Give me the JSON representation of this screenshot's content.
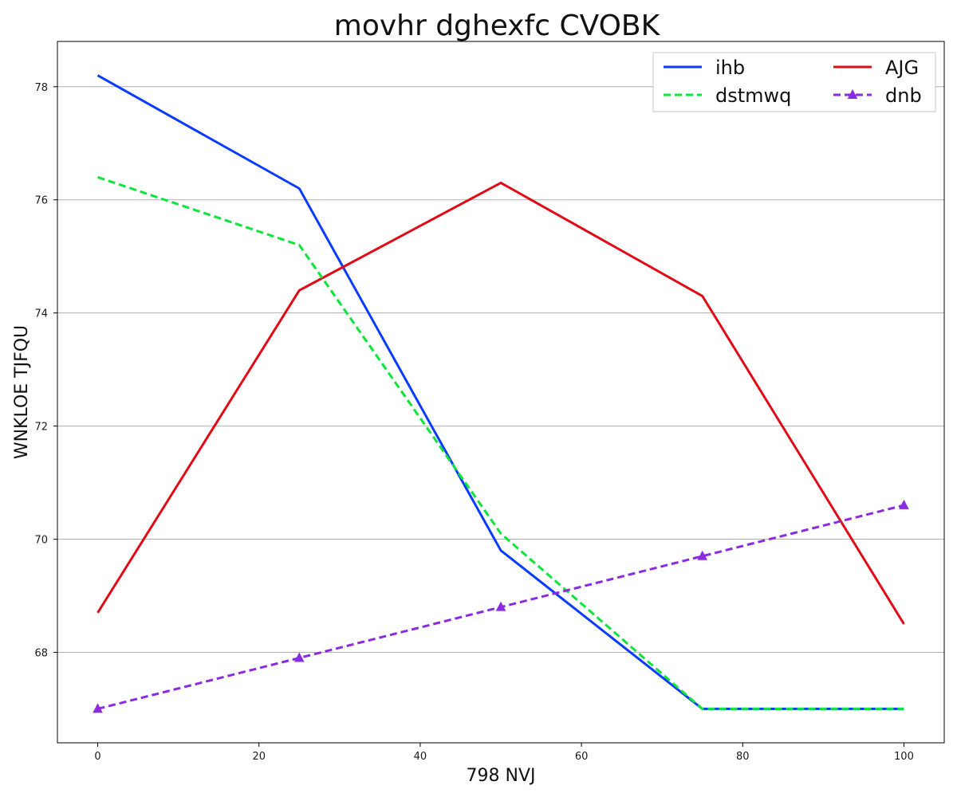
{
  "chart_data": {
    "type": "line",
    "title": "movhr dghexfc CVOBK",
    "xlabel": "798 NVJ",
    "ylabel": "WNKLOE TJFQU",
    "x": [
      0,
      25,
      50,
      75,
      100
    ],
    "xlim": [
      -5,
      105
    ],
    "ylim": [
      66.4,
      78.8
    ],
    "xticks": [
      0,
      20,
      40,
      60,
      80,
      100
    ],
    "yticks": [
      68,
      70,
      72,
      74,
      76,
      78
    ],
    "grid": "horizontal",
    "legend_position": "top-right",
    "series": [
      {
        "name": "ihb",
        "values": [
          78.2,
          76.2,
          69.8,
          67.0,
          67.0
        ],
        "color": "#0a3cff",
        "dash": "solid",
        "marker": "none"
      },
      {
        "name": "AJG",
        "values": [
          68.7,
          74.4,
          76.3,
          74.3,
          68.5
        ],
        "color": "#e00b16",
        "dash": "solid",
        "marker": "none"
      },
      {
        "name": "dstmwq",
        "values": [
          76.4,
          75.2,
          70.1,
          67.0,
          67.0
        ],
        "color": "#0ee53a",
        "dash": "dashed",
        "marker": "none"
      },
      {
        "name": "dnb",
        "values": [
          67.0,
          67.9,
          68.8,
          69.7,
          70.6
        ],
        "color": "#8a2be2",
        "dash": "dashed",
        "marker": "triangle"
      }
    ]
  }
}
